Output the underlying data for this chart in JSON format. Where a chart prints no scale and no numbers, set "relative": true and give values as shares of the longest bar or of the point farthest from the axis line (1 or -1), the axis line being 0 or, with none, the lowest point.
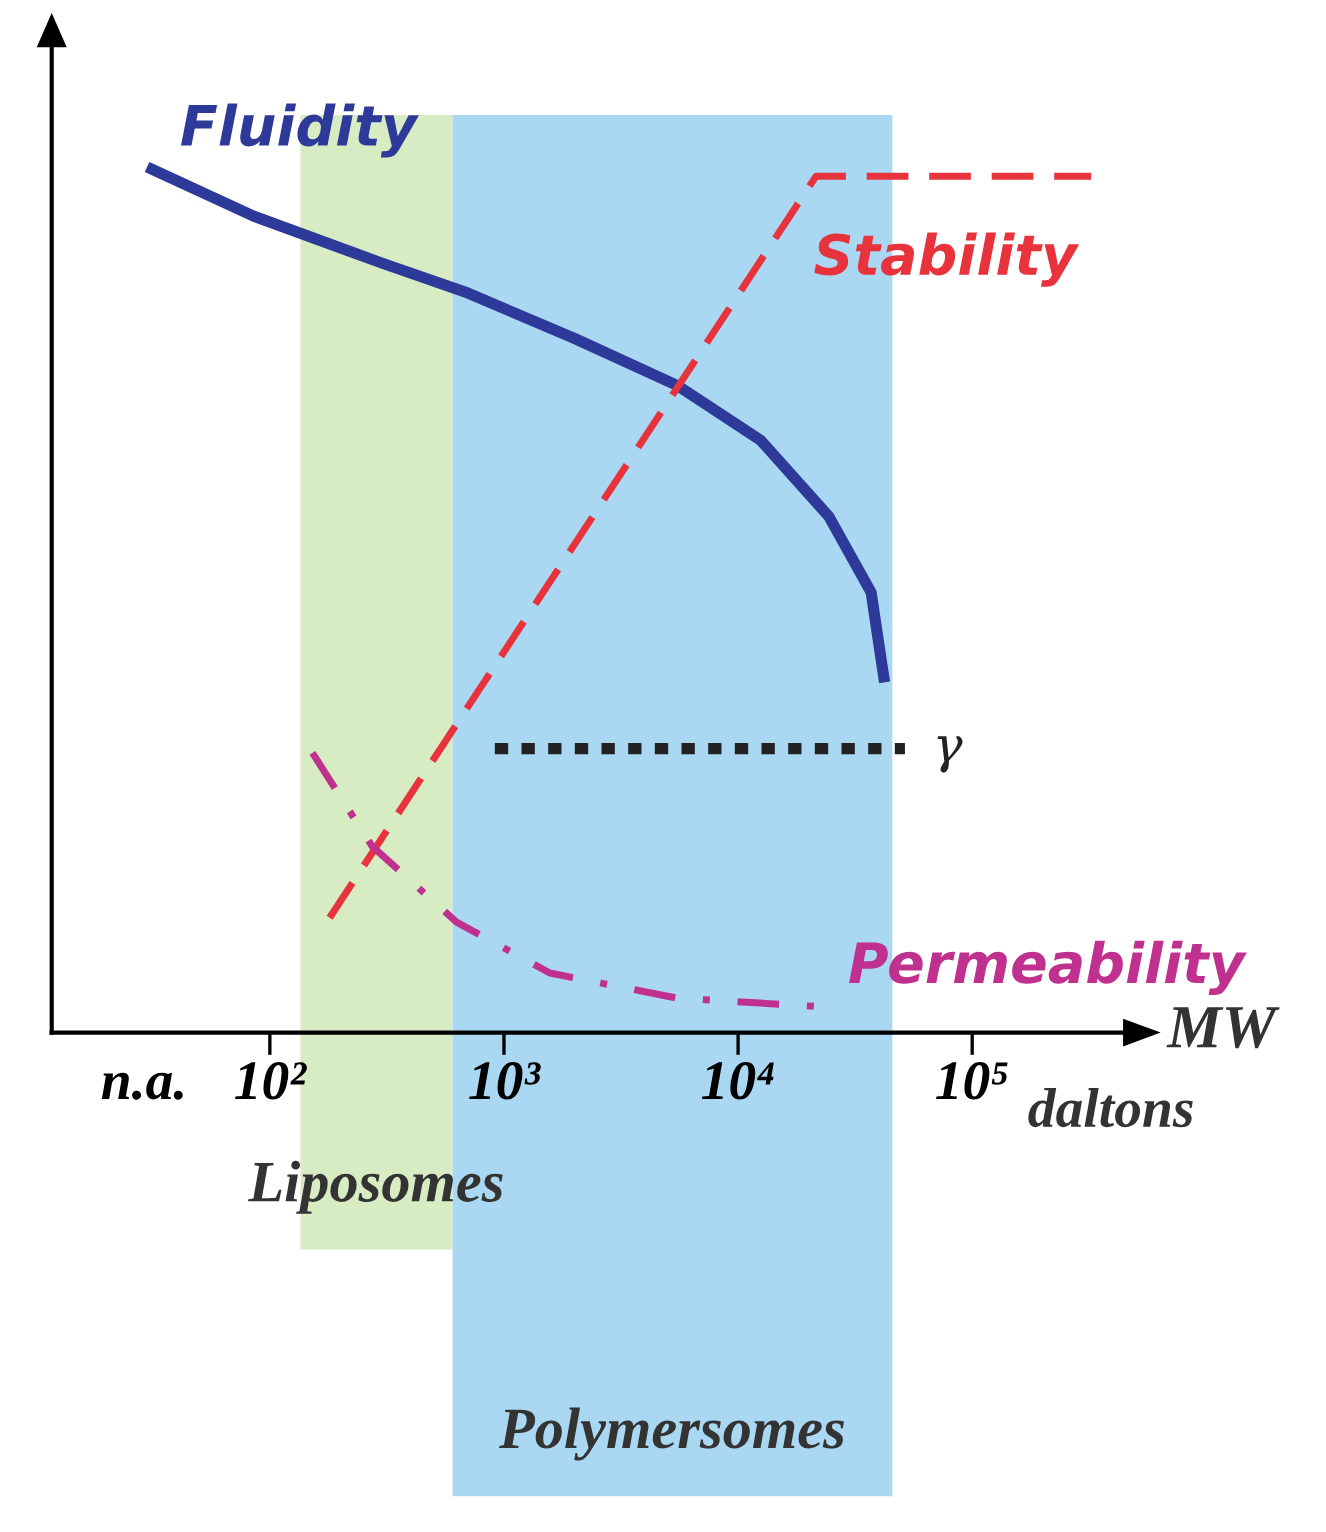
{
  "chart_data": {
    "type": "line",
    "relative": true,
    "xlabel": "MW",
    "log": "x",
    "xlim": [
      11.7,
      447000
    ],
    "xticks": [
      {
        "value": 29,
        "label": "n.a."
      },
      {
        "value": 100,
        "label": "10²"
      },
      {
        "value": 1000,
        "label": "10³"
      },
      {
        "value": 10000,
        "label": "10⁴"
      },
      {
        "value": 100000,
        "label": "10⁵"
      }
    ],
    "tick_labels": "x",
    "grid": false,
    "legend": false,
    "marker": "none",
    "series": [
      {
        "name": "Fluidity",
        "color": "#2e3a9a",
        "line_style": "solid",
        "x": [
          31.4,
          85,
          297,
          682,
          2010,
          5470,
          12500,
          24400,
          37000,
          41900
        ],
        "values": [
          1.0,
          0.946,
          0.892,
          0.858,
          0.804,
          0.75,
          0.686,
          0.598,
          0.51,
          0.412
        ]
      },
      {
        "name": "Stability",
        "color": "#e8323c",
        "line_style": "dashed",
        "x": [
          180,
          21500,
          322000
        ],
        "values": [
          0.133,
          0.992,
          0.992
        ]
      },
      {
        "name": "Permeability",
        "color": "#c0308f",
        "line_style": "dashdot",
        "x": [
          152,
          273,
          627,
          1570,
          5470,
          22400
        ],
        "values": [
          0.324,
          0.216,
          0.128,
          0.069,
          0.04,
          0.03
        ]
      },
      {
        "name": "γ",
        "color": "#222222",
        "line_style": "dotted",
        "x": [
          914,
          51600
        ],
        "values": [
          0.329,
          0.329
        ]
      }
    ],
    "bands": [
      {
        "axis": "x",
        "from": 135,
        "to": 603,
        "label": "Liposomes",
        "color": "#d8ecc4"
      },
      {
        "axis": "x",
        "from": 603,
        "to": 45600,
        "label": "Polymersomes",
        "color": "#aad8f2"
      }
    ],
    "annotations": [
      "daltons"
    ]
  }
}
